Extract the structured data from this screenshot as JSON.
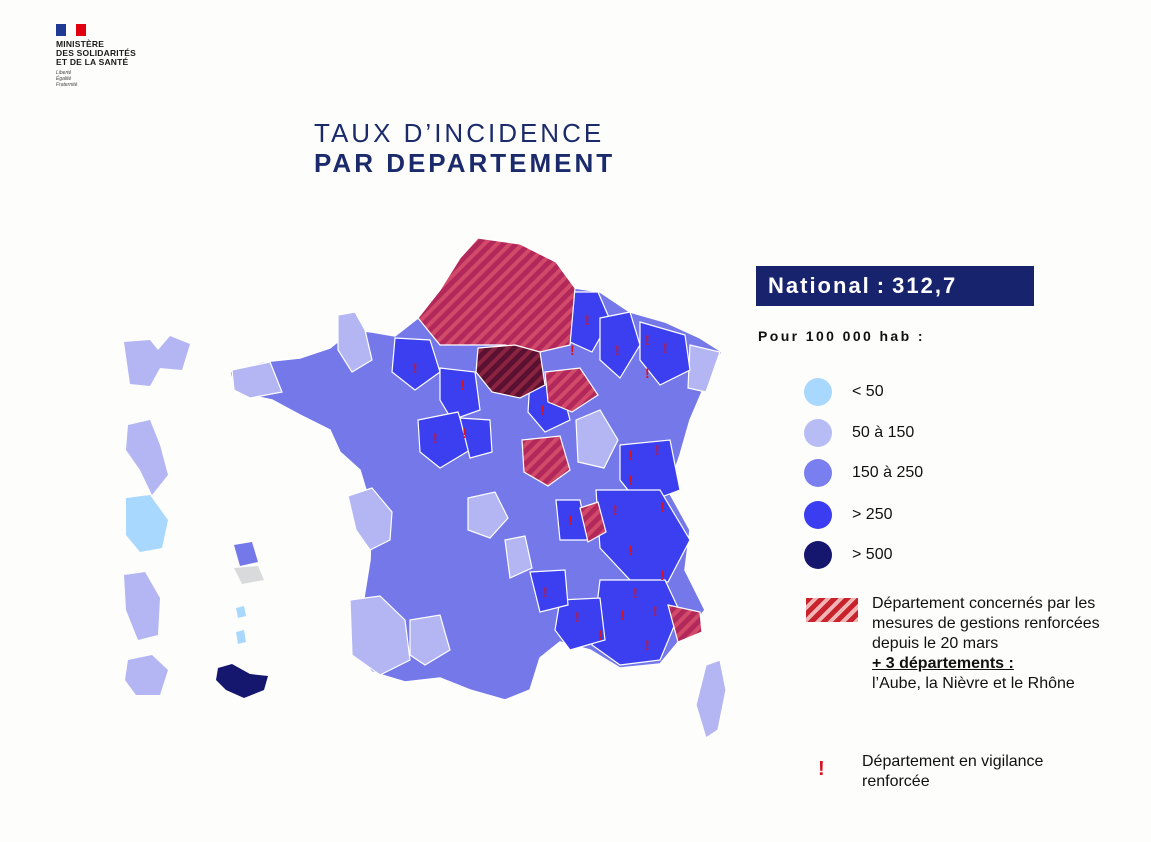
{
  "logo": {
    "lines": [
      "MINISTÈRE",
      "DES SOLIDARITÉS",
      "ET DE LA SANTÉ"
    ],
    "motto": [
      "Liberté",
      "Égalité",
      "Fraternité"
    ]
  },
  "title": {
    "line1": "TAUX D’INCIDENCE",
    "line2": "PAR DEPARTEMENT"
  },
  "national": {
    "label": "National",
    "separator": ":",
    "value": "312,7"
  },
  "per_hab": "Pour 100 000 hab :",
  "legend": {
    "classes": [
      {
        "label": "< 50",
        "color": "#a9d8ff"
      },
      {
        "label": "50 à 150",
        "color": "#b8bcf4"
      },
      {
        "label": "150 à 250",
        "color": "#7a7ff0"
      },
      {
        "label": "> 250",
        "color": "#3a3df0"
      },
      {
        "label": "> 500",
        "color": "#15166e"
      }
    ],
    "hatch": {
      "text": "Département concernés par les mesures de gestions renforcées depuis le 20 mars",
      "extra_title": "+ 3 départements :",
      "extra_list": "l’Aube, la Nièvre et le Rhône",
      "color": "#c8232c"
    },
    "vigilance": {
      "icon": "exclamation-mark-icon",
      "text": "Département en vigilance renforcée",
      "color": "#d6141e"
    }
  }
}
